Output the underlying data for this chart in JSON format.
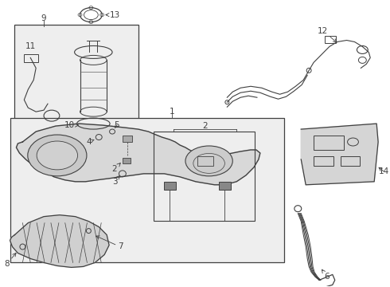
{
  "bg_color": "#ffffff",
  "line_color": "#404040",
  "box_fill": "#eeeeee",
  "fig_width": 4.9,
  "fig_height": 3.6,
  "dpi": 100
}
